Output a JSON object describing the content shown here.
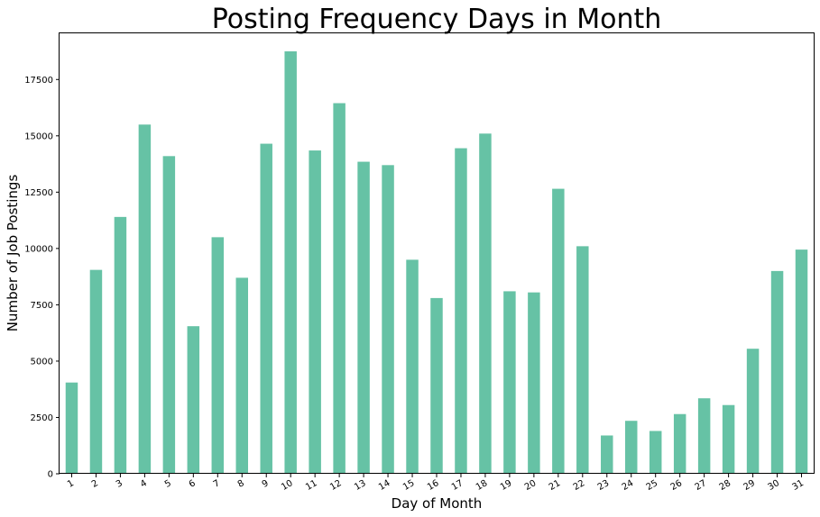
{
  "chart_data": {
    "type": "bar",
    "title": "Posting Frequency Days in Month",
    "xlabel": "Day of Month",
    "ylabel": "Number of Job Postings",
    "categories": [
      "1",
      "2",
      "3",
      "4",
      "5",
      "6",
      "7",
      "8",
      "9",
      "10",
      "11",
      "12",
      "13",
      "14",
      "15",
      "16",
      "17",
      "18",
      "19",
      "20",
      "21",
      "22",
      "23",
      "24",
      "25",
      "26",
      "27",
      "28",
      "29",
      "30",
      "31"
    ],
    "values": [
      4050,
      9050,
      11400,
      15500,
      14100,
      6550,
      10500,
      8700,
      14650,
      18750,
      14350,
      16450,
      13850,
      13700,
      9500,
      7800,
      14450,
      15100,
      8100,
      8050,
      12650,
      10100,
      1700,
      2350,
      1900,
      2650,
      3350,
      3050,
      5550,
      9000,
      9950
    ],
    "ylim": [
      0,
      19550
    ],
    "yticks": [
      0,
      2500,
      5000,
      7500,
      10000,
      12500,
      15000,
      17500
    ],
    "bar_color": "#66c2a5",
    "grid": false,
    "legend": "none"
  }
}
